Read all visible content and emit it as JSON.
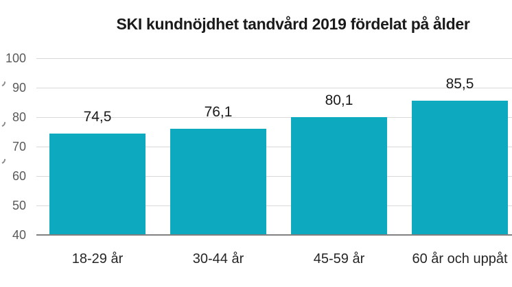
{
  "chart": {
    "title": "SKI kundnöjdhet tandvård 2019 fördelat på ålder"
  },
  "chart_data": {
    "type": "bar",
    "title": "SKI kundnöjdhet tandvård 2019 fördelat på ålder",
    "categories": [
      "18-29 år",
      "30-44 år",
      "45-59 år",
      "60 år och uppåt"
    ],
    "values": [
      74.5,
      76.1,
      80.1,
      85.5
    ],
    "value_labels": [
      "74,5",
      "76,1",
      "80,1",
      "85,5"
    ],
    "xlabel": "",
    "ylabel": "",
    "ylim": [
      40,
      100
    ],
    "yticks": [
      40,
      50,
      60,
      70,
      80,
      90,
      100
    ],
    "grid": true,
    "legend": false,
    "decimal_separator": ","
  },
  "colors": {
    "bar": "#0CA9BF",
    "gridline": "#D9D9D9",
    "axis_line": "#808080",
    "title_text": "#1A1A1A",
    "value_label_text": "#1A1A1A",
    "category_label_text": "#262626",
    "ytick_text": "#595959",
    "background": "#FFFFFF"
  }
}
